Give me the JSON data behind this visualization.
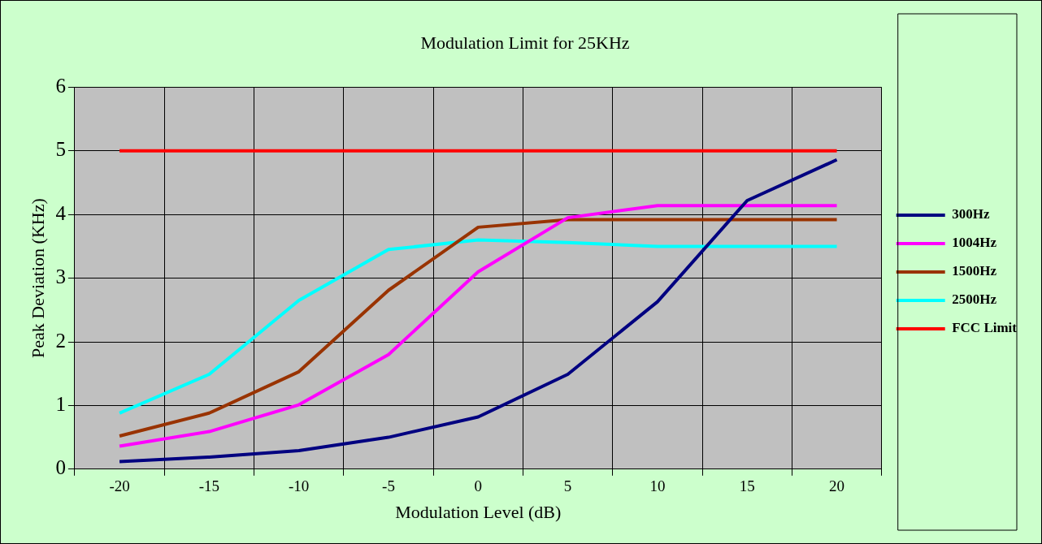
{
  "chart_data": {
    "type": "line",
    "title": "Modulation Limit for 25KHz",
    "xlabel": "Modulation Level (dB)",
    "ylabel": "Peak Deviation (KHz)",
    "categories": [
      "-20",
      "-15",
      "-10",
      "-5",
      "0",
      "5",
      "10",
      "15",
      "20"
    ],
    "series": [
      {
        "name": "300Hz",
        "color": "#000080",
        "values": [
          0.12,
          0.19,
          0.29,
          0.5,
          0.82,
          1.49,
          2.63,
          4.22,
          4.86
        ]
      },
      {
        "name": "1004Hz",
        "color": "#ff00ff",
        "values": [
          0.36,
          0.59,
          1.01,
          1.8,
          3.1,
          3.95,
          4.14,
          4.14,
          4.14
        ]
      },
      {
        "name": "1500Hz",
        "color": "#993300",
        "values": [
          0.52,
          0.88,
          1.53,
          2.81,
          3.8,
          3.92,
          3.92,
          3.92,
          3.92
        ]
      },
      {
        "name": "2500Hz",
        "color": "#00ffff",
        "values": [
          0.88,
          1.49,
          2.65,
          3.45,
          3.6,
          3.56,
          3.5,
          3.5,
          3.5
        ]
      },
      {
        "name": "FCC Limit",
        "color": "#ff0000",
        "values": [
          5,
          5,
          5,
          5,
          5,
          5,
          5,
          5,
          5
        ]
      }
    ],
    "ylim": [
      0,
      6
    ],
    "yticks": [
      0,
      1,
      2,
      3,
      4,
      5,
      6
    ],
    "grid": true,
    "legend": "right",
    "marker": "none",
    "line_style": "solid"
  }
}
